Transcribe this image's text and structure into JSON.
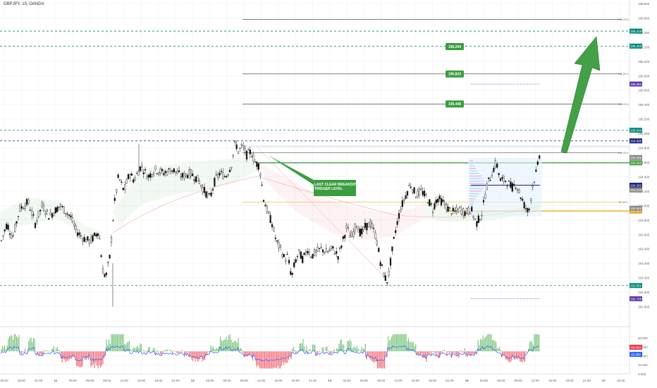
{
  "symbol": "GBPJPY, 15, OANDA",
  "annotation": [
    "LAST CLEAR BREAKDOWN",
    "TRIGGER LEVEL"
  ],
  "colors": {
    "up": "#4caf50",
    "down": "#f23645",
    "candle": "#111111",
    "teal": "#00897b",
    "navy": "#1a237e",
    "green_line": "#43a047",
    "orange": "#e6a200",
    "purple": "#5e35b1",
    "blue": "#2962ff",
    "fib": "#555555",
    "grid": "#eeeeee",
    "arrow": "#43a047"
  },
  "chart_data": {
    "type": "candlestick",
    "y_axis": {
      "min": 192.4,
      "max": 196.8,
      "ticks": [
        "196.800",
        "196.600",
        "196.400",
        "196.200",
        "196.000",
        "195.800",
        "195.600",
        "195.400",
        "195.200",
        "195.000",
        "194.800",
        "194.600",
        "194.400",
        "194.200",
        "194.000",
        "193.800",
        "193.600",
        "193.400",
        "193.200",
        "193.000",
        "192.800",
        "192.600"
      ]
    },
    "x_axis_labels": [
      "09:00",
      "18:00",
      "21:00",
      "11",
      "03:00",
      "06:00",
      "09:00",
      "12:00",
      "15:00",
      "18:00",
      "21:00",
      "12",
      "03:00",
      "06:00",
      "09:00",
      "12:00",
      "15:00",
      "18:00",
      "21:00",
      "13",
      "03:00",
      "06:00",
      "09:00",
      "12:00",
      "15:00",
      "18:00",
      "21:00",
      "16",
      "03:00",
      "06:00",
      "09:00",
      "12:00",
      "15:00",
      "18:00",
      "21:00",
      "17",
      "03:00"
    ],
    "horizontal_levels": [
      {
        "value": 196.418,
        "label": "196.418",
        "style": "teal-dashed"
      },
      {
        "value": 196.21,
        "label": "196.210",
        "style": "teal-dashed"
      },
      {
        "value": 195.044,
        "label": "195.044",
        "style": "teal-dashed"
      },
      {
        "value": 194.896,
        "label": "194.896",
        "style": "navy-dashed"
      },
      {
        "value": 194.592,
        "label": "194.592",
        "style": "green-solid"
      },
      {
        "value": 193.924,
        "label": "193.924",
        "style": "orange-solid"
      },
      {
        "value": 192.891,
        "label": "192.891",
        "style": "teal-dashed"
      },
      {
        "value": 192.708,
        "label": "192.708",
        "style": "purple"
      }
    ],
    "fib_levels": [
      {
        "value": 196.58,
        "label": "200.00%"
      },
      {
        "value": 195.825,
        "label": "161.80%"
      },
      {
        "value": 195.408,
        "label": "138.20%"
      },
      {
        "value": 194.73,
        "label": "100.00%"
      },
      {
        "value": 194.05,
        "label": "61.80%"
      }
    ],
    "target_boxes": [
      {
        "value": 196.204,
        "label": "196.204"
      },
      {
        "value": 195.823,
        "label": "195.823"
      },
      {
        "value": 195.408,
        "label": "195.408"
      }
    ],
    "price_tags": [
      {
        "value": 195.684,
        "label": "195.684",
        "color": "purple"
      },
      {
        "value": 194.666,
        "label": "194.666",
        "color": "gray"
      },
      {
        "value": 194.282,
        "label": "194.282",
        "color": "navy"
      },
      {
        "value": 194.216,
        "label": "194.216",
        "color": "gray"
      },
      {
        "value": 193.963,
        "label": "193.963",
        "color": "gray"
      }
    ],
    "oscillator": {
      "range": [
        0,
        100
      ],
      "ticks": [
        "80.000",
        "60.000",
        "40.000",
        "20.000",
        "0.000"
      ],
      "last_values": [
        {
          "label": "59.063",
          "color": "red"
        },
        {
          "label": "43.306",
          "color": "blue"
        }
      ]
    },
    "price_path": [
      [
        0,
        193.45
      ],
      [
        10,
        193.75
      ],
      [
        18,
        193.55
      ],
      [
        28,
        193.95
      ],
      [
        40,
        194.05
      ],
      [
        50,
        193.75
      ],
      [
        60,
        194.0
      ],
      [
        70,
        193.85
      ],
      [
        85,
        194.0
      ],
      [
        100,
        193.85
      ],
      [
        108,
        193.65
      ],
      [
        118,
        193.55
      ],
      [
        128,
        193.5
      ],
      [
        140,
        193.65
      ],
      [
        146,
        193.1
      ],
      [
        150,
        193.0
      ],
      [
        156,
        193.3
      ],
      [
        162,
        194.0
      ],
      [
        168,
        194.4
      ],
      [
        176,
        194.2
      ],
      [
        184,
        194.45
      ],
      [
        190,
        194.35
      ],
      [
        200,
        194.55
      ],
      [
        210,
        194.4
      ],
      [
        220,
        194.5
      ],
      [
        232,
        194.45
      ],
      [
        245,
        194.5
      ],
      [
        258,
        194.4
      ],
      [
        270,
        194.45
      ],
      [
        282,
        194.35
      ],
      [
        290,
        194.2
      ],
      [
        298,
        194.1
      ],
      [
        305,
        194.35
      ],
      [
        312,
        194.45
      ],
      [
        320,
        194.4
      ],
      [
        328,
        194.55
      ],
      [
        334,
        194.88
      ],
      [
        338,
        194.75
      ],
      [
        344,
        194.82
      ],
      [
        350,
        194.7
      ],
      [
        356,
        194.75
      ],
      [
        362,
        194.6
      ],
      [
        368,
        194.55
      ],
      [
        374,
        194.1
      ],
      [
        380,
        193.9
      ],
      [
        386,
        193.75
      ],
      [
        392,
        193.5
      ],
      [
        398,
        193.4
      ],
      [
        404,
        193.25
      ],
      [
        408,
        193.3
      ],
      [
        414,
        193.0
      ],
      [
        418,
        193.2
      ],
      [
        424,
        193.35
      ],
      [
        430,
        193.25
      ],
      [
        436,
        193.4
      ],
      [
        442,
        193.3
      ],
      [
        448,
        193.35
      ],
      [
        456,
        193.4
      ],
      [
        464,
        193.35
      ],
      [
        472,
        193.4
      ],
      [
        480,
        193.3
      ],
      [
        486,
        193.5
      ],
      [
        492,
        193.7
      ],
      [
        498,
        193.55
      ],
      [
        506,
        193.75
      ],
      [
        512,
        193.6
      ],
      [
        518,
        193.7
      ],
      [
        526,
        193.75
      ],
      [
        534,
        193.55
      ],
      [
        540,
        193.2
      ],
      [
        546,
        193.0
      ],
      [
        550,
        192.95
      ],
      [
        556,
        193.35
      ],
      [
        562,
        193.7
      ],
      [
        568,
        193.95
      ],
      [
        576,
        194.15
      ],
      [
        582,
        194.3
      ],
      [
        590,
        194.15
      ],
      [
        598,
        194.2
      ],
      [
        606,
        194.1
      ],
      [
        614,
        193.95
      ],
      [
        620,
        194.1
      ],
      [
        628,
        194.05
      ],
      [
        636,
        193.95
      ],
      [
        644,
        193.9
      ],
      [
        652,
        193.95
      ],
      [
        660,
        193.9
      ],
      [
        668,
        193.95
      ],
      [
        676,
        193.75
      ],
      [
        684,
        193.9
      ],
      [
        690,
        194.25
      ],
      [
        698,
        194.45
      ],
      [
        704,
        194.6
      ],
      [
        710,
        194.35
      ],
      [
        718,
        194.35
      ],
      [
        726,
        194.25
      ],
      [
        732,
        194.3
      ],
      [
        738,
        194.15
      ],
      [
        744,
        194.0
      ],
      [
        750,
        193.9
      ],
      [
        756,
        194.3
      ],
      [
        762,
        194.5
      ],
      [
        766,
        194.75
      ]
    ]
  }
}
